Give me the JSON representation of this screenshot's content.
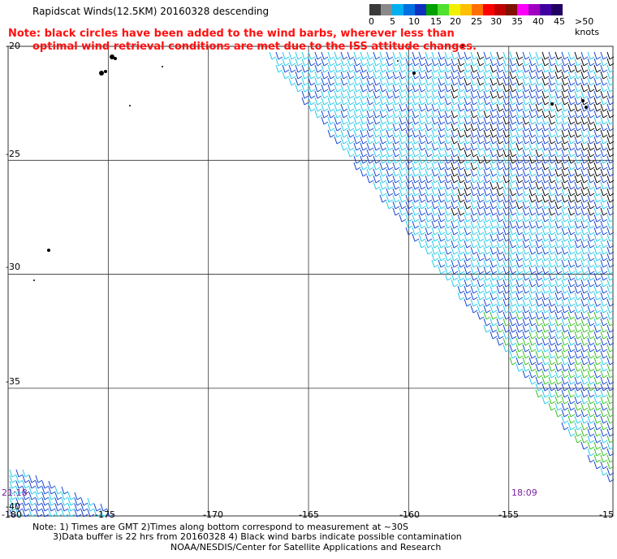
{
  "title": "Rapidscat Winds(12.5KM) 20160328 descending",
  "note_lines": [
    "Note: black circles have been added to the wind barbs, wherever less than",
    "optimal wind retrieval conditions are met due to the ISS attitude changes."
  ],
  "color_scale": {
    "labels": [
      "0",
      "5",
      "10",
      "15",
      "20",
      "25",
      "30",
      "35",
      "40",
      "45",
      ">50 knots"
    ],
    "colors": [
      "#3a3a3a",
      "#8a8a8a",
      "#00b0f0",
      "#0070e0",
      "#1030c0",
      "#00a000",
      "#50e030",
      "#f0f000",
      "#ffc000",
      "#ff7000",
      "#ff0000",
      "#c00000",
      "#801000",
      "#ff00ff",
      "#a000c0",
      "#4000a0",
      "#200060"
    ]
  },
  "map": {
    "lat_labels": [
      "-20",
      "-25",
      "-30",
      "-35",
      "-40"
    ],
    "lon_labels": [
      "-180",
      "-175",
      "-170",
      "-165",
      "-160",
      "-155",
      "-15"
    ],
    "time_labels": [
      "21:18",
      "18:09"
    ],
    "colors": {
      "grid": "#333333",
      "barb_cyan": "#20c8e8",
      "barb_blue": "#1040d0",
      "barb_green": "#30c020",
      "barb_black": "#000000",
      "barb_yellow": "#e8e050"
    }
  },
  "footer": {
    "line1": "Note: 1) Times are GMT 2)Times along bottom correspond to measurement at ~30S",
    "line2": "3)Data buffer is 22 hrs from 20160328 4) Black wind barbs indicate possible contamination",
    "line3": "NOAA/NESDIS/Center for Satellite Applications and Research"
  }
}
